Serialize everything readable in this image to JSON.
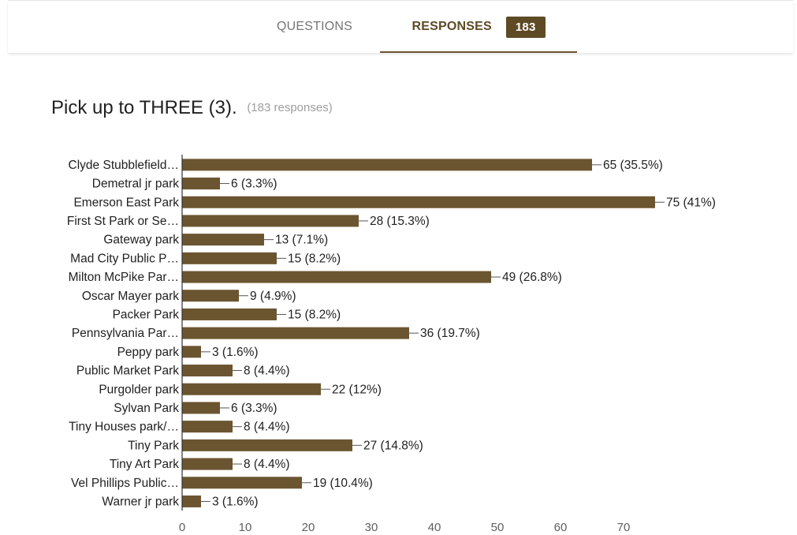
{
  "tabs": {
    "questions_label": "QUESTIONS",
    "responses_label": "RESPONSES",
    "responses_badge": "183"
  },
  "question": {
    "title": "Pick up to THREE (3).",
    "response_count": "(183 responses)"
  },
  "colors": {
    "bar": "#6b5530",
    "accent": "#5e4a24",
    "axis": "#333333",
    "label": "#212121",
    "tick": "#5f5f5f"
  },
  "chart_data": {
    "type": "bar",
    "orientation": "horizontal",
    "title": "",
    "xlabel": "",
    "ylabel": "",
    "xlim": [
      0,
      75
    ],
    "xticks": [
      0,
      10,
      20,
      30,
      40,
      50,
      60,
      70
    ],
    "grid": false,
    "legend": "none",
    "categories": [
      "Clyde Stubblefield…",
      "Demetral jr park",
      "Emerson East Park",
      "First St Park or Se…",
      "Gateway park",
      "Mad City Public P…",
      "Milton McPike Par…",
      "Oscar Mayer park",
      "Packer Park",
      "Pennsylvania Par…",
      "Peppy park",
      "Public Market Park",
      "Purgolder park",
      "Sylvan Park",
      "Tiny Houses park/…",
      "Tiny Park",
      "Tiny Art Park",
      "Vel Phillips Public…",
      "Warner jr park"
    ],
    "values": [
      65,
      6,
      75,
      28,
      13,
      15,
      49,
      9,
      15,
      36,
      3,
      8,
      22,
      6,
      8,
      27,
      8,
      19,
      3
    ],
    "data_labels": [
      "65 (35.5%)",
      "6 (3.3%)",
      "75 (41%)",
      "28 (15.3%)",
      "13 (7.1%)",
      "15 (8.2%)",
      "49 (26.8%)",
      "9 (4.9%)",
      "15 (8.2%)",
      "36 (19.7%)",
      "3 (1.6%)",
      "8 (4.4%)",
      "22 (12%)",
      "6 (3.3%)",
      "8 (4.4%)",
      "27 (14.8%)",
      "8 (4.4%)",
      "19 (10.4%)",
      "3 (1.6%)"
    ]
  }
}
